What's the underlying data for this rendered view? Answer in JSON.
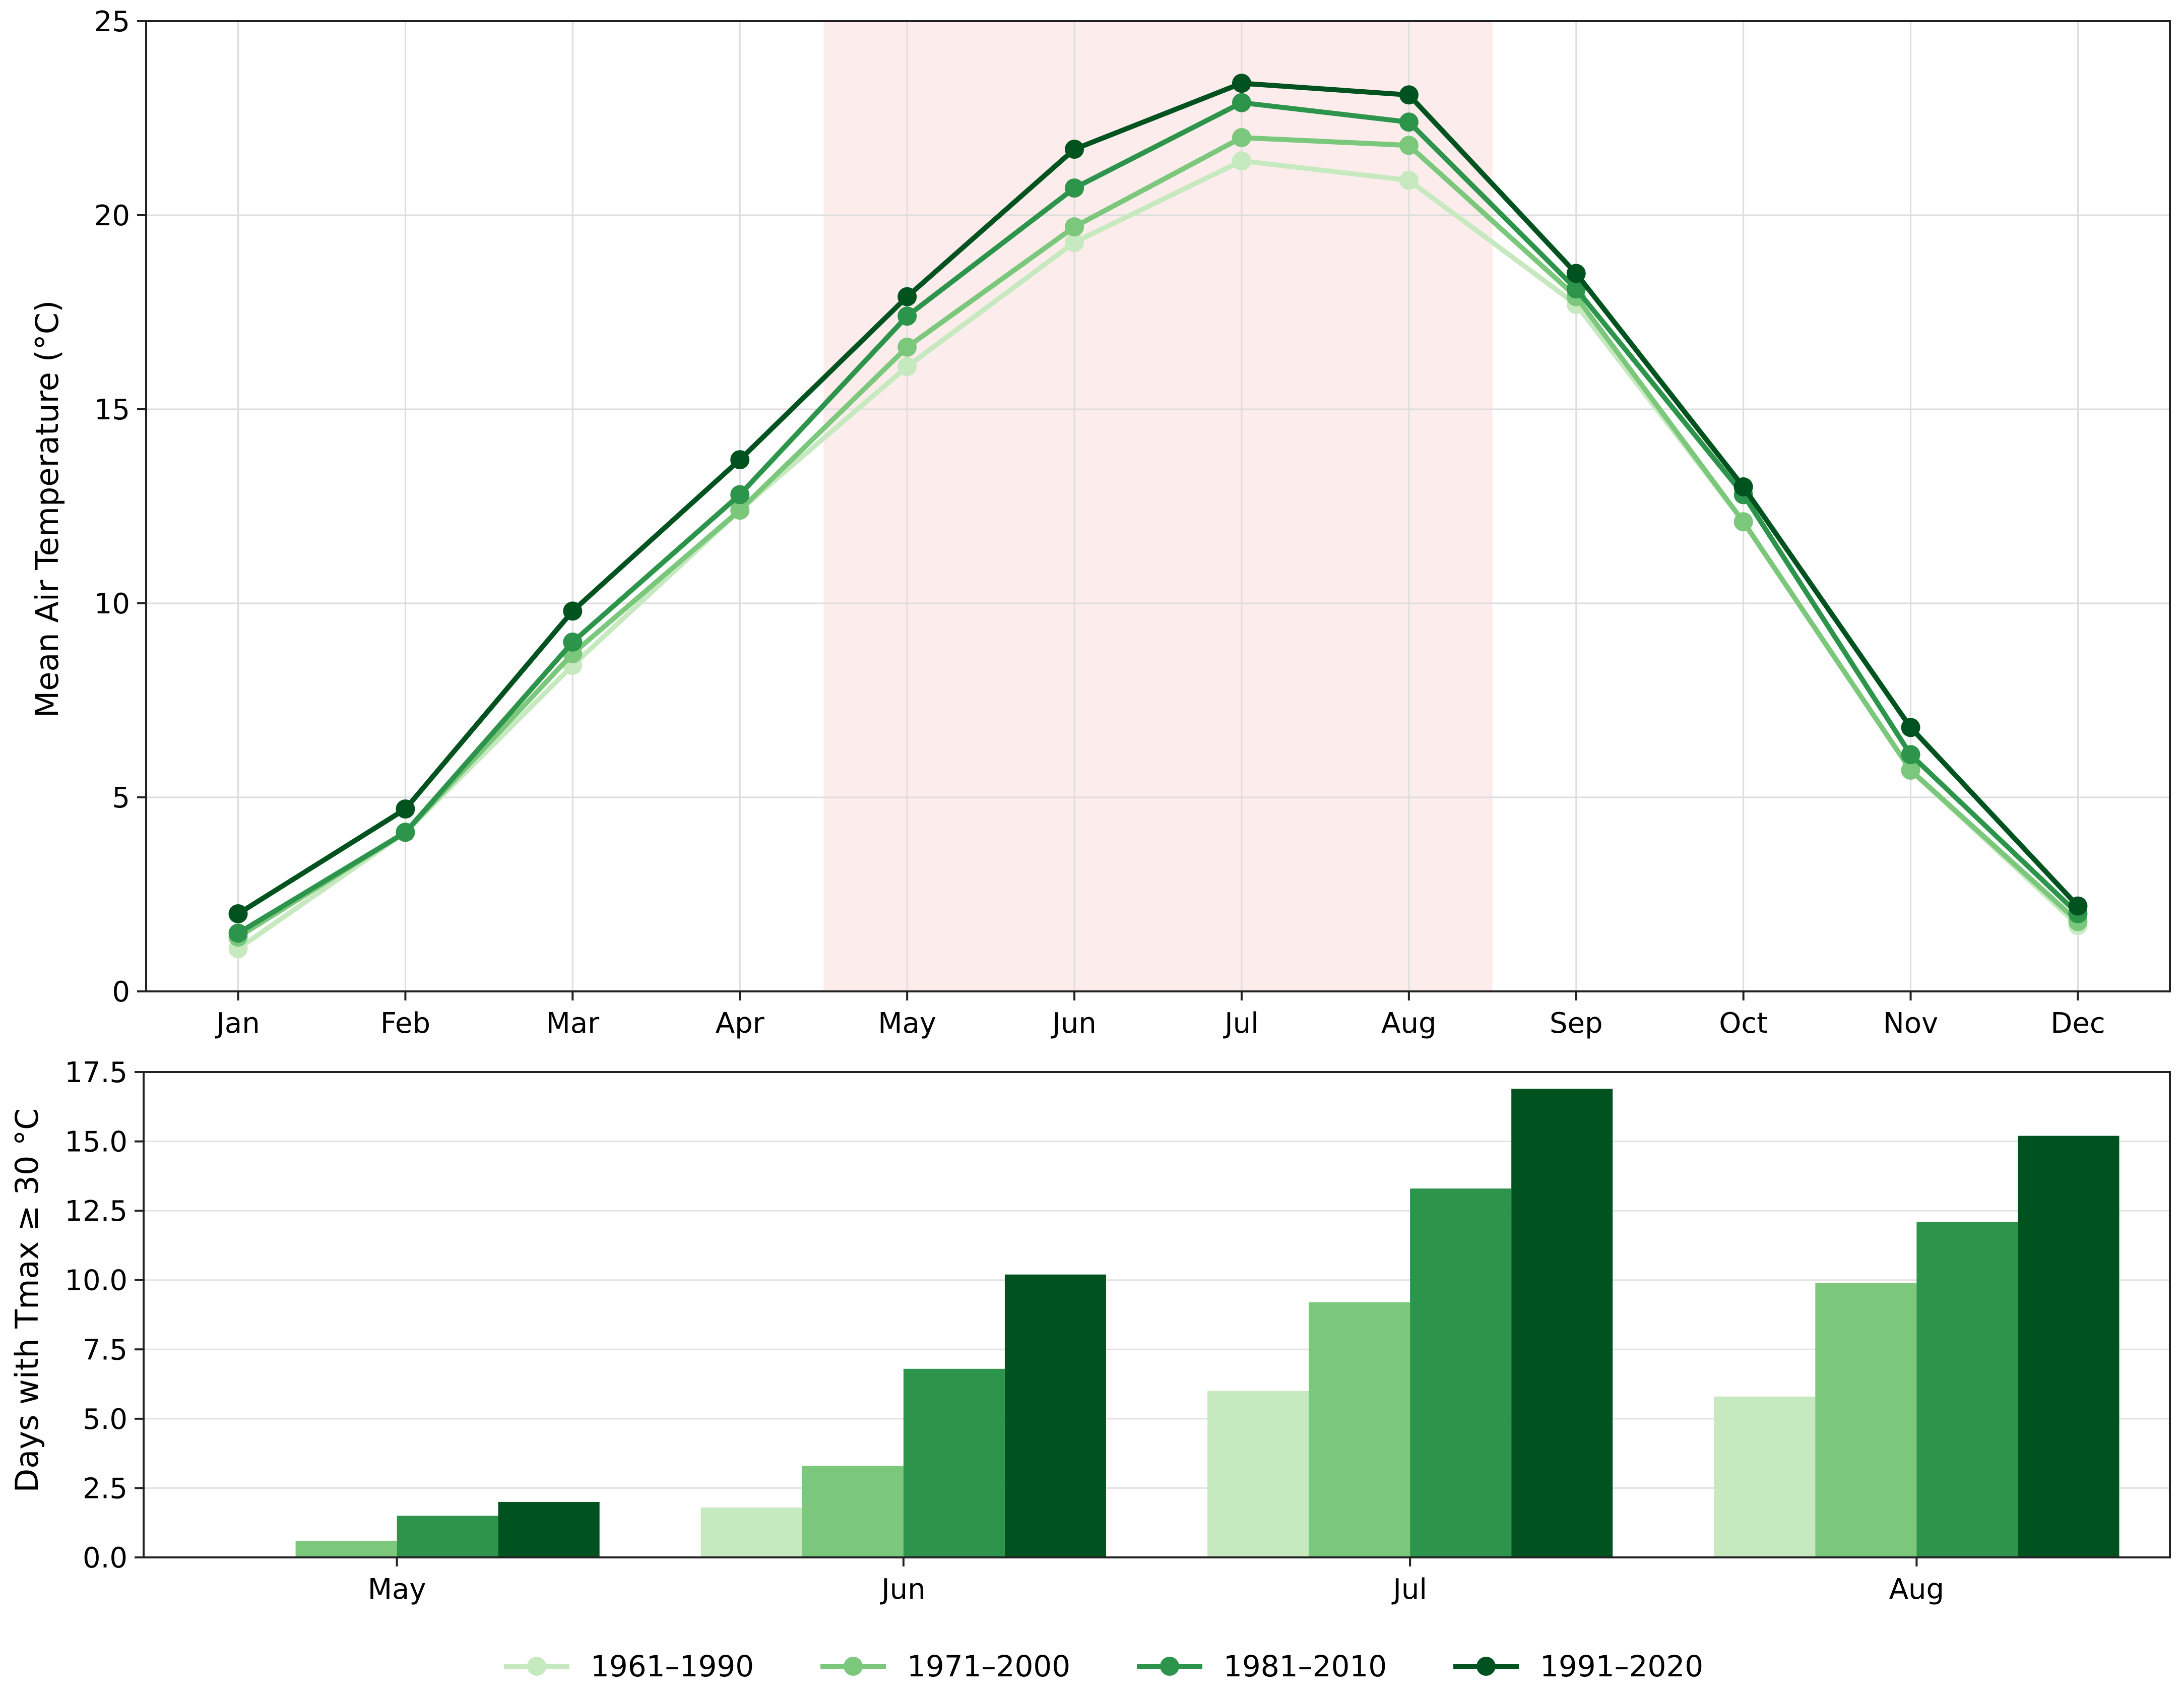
{
  "legend": {
    "position": "bottom-center",
    "entries": [
      {
        "label": "1961–1990",
        "color": "#c7e9c0"
      },
      {
        "label": "1971–2000",
        "color": "#7bc87c"
      },
      {
        "label": "1981–2010",
        "color": "#2d944b"
      },
      {
        "label": "1991–2020",
        "color": "#00531f"
      }
    ]
  },
  "chart_data": [
    {
      "type": "line",
      "ylabel": "Mean Air Temperature (°C)",
      "ylim": [
        0,
        25
      ],
      "yticks": [
        0,
        5,
        10,
        15,
        20,
        25
      ],
      "grid": true,
      "categories": [
        "Jan",
        "Feb",
        "Mar",
        "Apr",
        "May",
        "Jun",
        "Jul",
        "Aug",
        "Sep",
        "Oct",
        "Nov",
        "Dec"
      ],
      "highlight": {
        "from": "May",
        "to": "Aug",
        "color": "#fdecec"
      },
      "series": [
        {
          "name": "1961–1990",
          "color": "#c7e9c0",
          "values": [
            1.1,
            4.1,
            8.4,
            12.4,
            16.1,
            19.3,
            21.4,
            20.9,
            17.7,
            12.1,
            5.7,
            1.7
          ]
        },
        {
          "name": "1971–2000",
          "color": "#7bc87c",
          "values": [
            1.4,
            4.1,
            8.7,
            12.4,
            16.6,
            19.7,
            22.0,
            21.8,
            17.9,
            12.1,
            5.7,
            1.8
          ]
        },
        {
          "name": "1981–2010",
          "color": "#2d944b",
          "values": [
            1.5,
            4.1,
            9.0,
            12.8,
            17.4,
            20.7,
            22.9,
            22.4,
            18.1,
            12.8,
            6.1,
            2.0
          ]
        },
        {
          "name": "1991–2020",
          "color": "#00531f",
          "values": [
            2.0,
            4.7,
            9.8,
            13.7,
            17.9,
            21.7,
            23.4,
            23.1,
            18.5,
            13.0,
            6.8,
            2.2
          ]
        }
      ]
    },
    {
      "type": "bar",
      "ylabel": "Days with Tmax ≥ 30 °C",
      "ylim": [
        0,
        17.5
      ],
      "yticks": [
        "0.0",
        "2.5",
        "5.0",
        "7.5",
        "10.0",
        "12.5",
        "15.0",
        "17.5"
      ],
      "grid": true,
      "categories": [
        "May",
        "Jun",
        "Jul",
        "Aug"
      ],
      "series": [
        {
          "name": "1961–1990",
          "color": "#c7e9c0",
          "values": [
            0.0,
            1.8,
            6.0,
            5.8
          ]
        },
        {
          "name": "1971–2000",
          "color": "#7bc87c",
          "values": [
            0.6,
            3.3,
            9.2,
            9.9
          ]
        },
        {
          "name": "1981–2010",
          "color": "#2d944b",
          "values": [
            1.5,
            6.8,
            13.3,
            12.1
          ]
        },
        {
          "name": "1991–2020",
          "color": "#00531f",
          "values": [
            2.0,
            10.2,
            16.9,
            15.2
          ]
        }
      ]
    }
  ]
}
